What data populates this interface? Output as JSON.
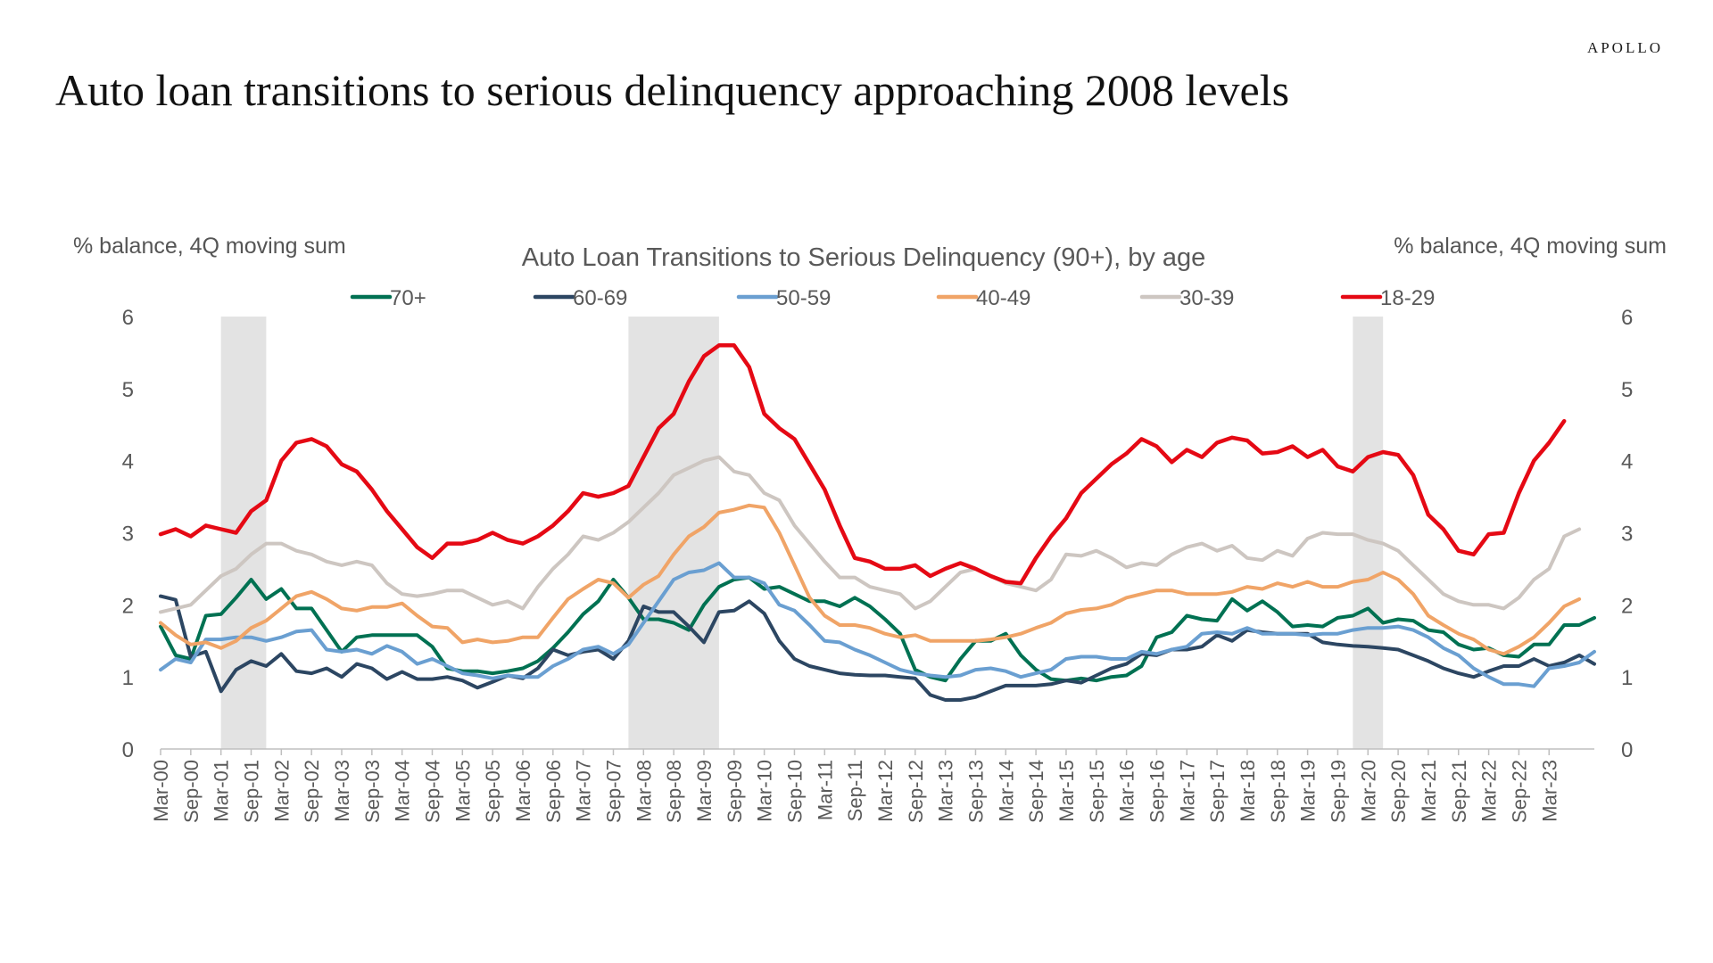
{
  "brand": "APOLLO",
  "headline": "Auto loan transitions to serious delinquency approaching 2008 levels",
  "chart_data": {
    "type": "line",
    "title": "Auto Loan Transitions to Serious Delinquency (90+), by age",
    "ylabel_left": "% balance, 4Q moving sum",
    "ylabel_right": "% balance, 4Q moving sum",
    "ylim": [
      0,
      6
    ],
    "yticks": [
      0,
      1,
      2,
      3,
      4,
      5,
      6
    ],
    "legend_position": "top",
    "grid": false,
    "x_tick_labels": [
      "Mar-00",
      "Sep-00",
      "Mar-01",
      "Sep-01",
      "Mar-02",
      "Sep-02",
      "Mar-03",
      "Sep-03",
      "Mar-04",
      "Sep-04",
      "Mar-05",
      "Sep-05",
      "Mar-06",
      "Sep-06",
      "Mar-07",
      "Sep-07",
      "Mar-08",
      "Sep-08",
      "Mar-09",
      "Sep-09",
      "Mar-10",
      "Sep-10",
      "Mar-11",
      "Sep-11",
      "Mar-12",
      "Sep-12",
      "Mar-13",
      "Sep-13",
      "Mar-14",
      "Sep-14",
      "Mar-15",
      "Sep-15",
      "Mar-16",
      "Sep-16",
      "Mar-17",
      "Sep-17",
      "Mar-18",
      "Sep-18",
      "Mar-19",
      "Sep-19",
      "Mar-20",
      "Sep-20",
      "Mar-21",
      "Sep-21",
      "Mar-22",
      "Sep-22",
      "Mar-23"
    ],
    "recessions": [
      {
        "start": "Mar-01",
        "end": "Dec-01"
      },
      {
        "start": "Dec-07",
        "end": "Jun-09"
      },
      {
        "start": "Dec-19",
        "end": "Jun-20"
      }
    ],
    "series": [
      {
        "name": "70+",
        "color": "#007152",
        "values": [
          1.7,
          1.3,
          1.25,
          1.85,
          1.87,
          2.1,
          2.35,
          2.08,
          2.22,
          1.95,
          1.95,
          1.65,
          1.35,
          1.55,
          1.58,
          1.58,
          1.58,
          1.58,
          1.42,
          1.12,
          1.08,
          1.08,
          1.05,
          1.08,
          1.12,
          1.22,
          1.4,
          1.62,
          1.87,
          2.05,
          2.35,
          2.1,
          1.8,
          1.8,
          1.75,
          1.65,
          2.0,
          2.25,
          2.35,
          2.38,
          2.22,
          2.25,
          2.15,
          2.05,
          2.05,
          1.98,
          2.1,
          1.98,
          1.8,
          1.6,
          1.1,
          1.0,
          0.95,
          1.25,
          1.5,
          1.5,
          1.6,
          1.3,
          1.1,
          0.97,
          0.95,
          0.98,
          0.95,
          1.0,
          1.02,
          1.15,
          1.55,
          1.62,
          1.85,
          1.8,
          1.78,
          2.08,
          1.92,
          2.05,
          1.9,
          1.7,
          1.72,
          1.7,
          1.82,
          1.85,
          1.95,
          1.75,
          1.8,
          1.78,
          1.65,
          1.62,
          1.45,
          1.38,
          1.4,
          1.3,
          1.28,
          1.45,
          1.45,
          1.72,
          1.72,
          1.82
        ]
      },
      {
        "name": "60-69",
        "color": "#2C4662",
        "values": [
          2.12,
          2.07,
          1.28,
          1.35,
          0.8,
          1.1,
          1.22,
          1.15,
          1.32,
          1.08,
          1.05,
          1.12,
          1.0,
          1.18,
          1.12,
          0.97,
          1.07,
          0.97,
          0.97,
          1.0,
          0.95,
          0.85,
          0.93,
          1.02,
          0.98,
          1.12,
          1.38,
          1.3,
          1.35,
          1.38,
          1.25,
          1.5,
          1.98,
          1.9,
          1.9,
          1.7,
          1.48,
          1.9,
          1.92,
          2.05,
          1.88,
          1.5,
          1.25,
          1.15,
          1.1,
          1.05,
          1.03,
          1.02,
          1.02,
          1.0,
          0.98,
          0.75,
          0.68,
          0.68,
          0.72,
          0.8,
          0.88,
          0.88,
          0.88,
          0.9,
          0.95,
          0.92,
          1.02,
          1.12,
          1.18,
          1.32,
          1.3,
          1.38,
          1.38,
          1.42,
          1.58,
          1.5,
          1.65,
          1.62,
          1.6,
          1.6,
          1.6,
          1.48,
          1.45,
          1.43,
          1.42,
          1.4,
          1.38,
          1.3,
          1.22,
          1.12,
          1.05,
          1.0,
          1.08,
          1.15,
          1.15,
          1.25,
          1.15,
          1.2,
          1.3,
          1.18
        ]
      },
      {
        "name": "50-59",
        "color": "#6A9FD1",
        "values": [
          1.1,
          1.25,
          1.2,
          1.52,
          1.52,
          1.55,
          1.55,
          1.5,
          1.55,
          1.63,
          1.65,
          1.38,
          1.35,
          1.38,
          1.32,
          1.43,
          1.35,
          1.18,
          1.25,
          1.15,
          1.05,
          1.02,
          0.98,
          1.02,
          1.0,
          1.0,
          1.15,
          1.25,
          1.38,
          1.42,
          1.32,
          1.45,
          1.75,
          2.05,
          2.35,
          2.45,
          2.48,
          2.58,
          2.38,
          2.38,
          2.3,
          2.0,
          1.92,
          1.72,
          1.5,
          1.48,
          1.38,
          1.3,
          1.2,
          1.1,
          1.05,
          1.02,
          1.0,
          1.02,
          1.1,
          1.12,
          1.08,
          1.0,
          1.05,
          1.1,
          1.25,
          1.28,
          1.28,
          1.25,
          1.25,
          1.35,
          1.32,
          1.38,
          1.42,
          1.6,
          1.62,
          1.6,
          1.68,
          1.6,
          1.6,
          1.6,
          1.58,
          1.6,
          1.6,
          1.65,
          1.68,
          1.68,
          1.7,
          1.65,
          1.55,
          1.4,
          1.3,
          1.12,
          1.0,
          0.9,
          0.9,
          0.87,
          1.12,
          1.15,
          1.2,
          1.35
        ]
      },
      {
        "name": "40-49",
        "color": "#F0A467",
        "values": [
          1.75,
          1.58,
          1.45,
          1.48,
          1.4,
          1.5,
          1.68,
          1.78,
          1.95,
          2.12,
          2.18,
          2.08,
          1.95,
          1.92,
          1.97,
          1.97,
          2.02,
          1.85,
          1.7,
          1.68,
          1.48,
          1.52,
          1.48,
          1.5,
          1.55,
          1.55,
          1.82,
          2.08,
          2.22,
          2.35,
          2.3,
          2.1,
          2.28,
          2.4,
          2.7,
          2.95,
          3.08,
          3.28,
          3.32,
          3.38,
          3.35,
          3.0,
          2.55,
          2.1,
          1.85,
          1.72,
          1.72,
          1.68,
          1.6,
          1.55,
          1.58,
          1.5,
          1.5,
          1.5,
          1.5,
          1.52,
          1.55,
          1.6,
          1.68,
          1.75,
          1.88,
          1.93,
          1.95,
          2.0,
          2.1,
          2.15,
          2.2,
          2.2,
          2.15,
          2.15,
          2.15,
          2.18,
          2.25,
          2.22,
          2.3,
          2.25,
          2.32,
          2.25,
          2.25,
          2.32,
          2.35,
          2.45,
          2.35,
          2.15,
          1.85,
          1.72,
          1.6,
          1.52,
          1.38,
          1.32,
          1.42,
          1.55,
          1.75,
          1.98,
          2.08
        ]
      },
      {
        "name": "30-39",
        "color": "#CDC6C1",
        "values": [
          1.9,
          1.95,
          2.0,
          2.2,
          2.4,
          2.5,
          2.7,
          2.85,
          2.85,
          2.75,
          2.7,
          2.6,
          2.55,
          2.6,
          2.55,
          2.3,
          2.15,
          2.12,
          2.15,
          2.2,
          2.2,
          2.1,
          2.0,
          2.05,
          1.95,
          2.25,
          2.5,
          2.7,
          2.95,
          2.9,
          3.0,
          3.15,
          3.35,
          3.55,
          3.8,
          3.9,
          4.0,
          4.05,
          3.85,
          3.8,
          3.55,
          3.45,
          3.1,
          2.85,
          2.6,
          2.38,
          2.38,
          2.25,
          2.2,
          2.15,
          1.95,
          2.05,
          2.25,
          2.45,
          2.5,
          2.4,
          2.3,
          2.25,
          2.2,
          2.35,
          2.7,
          2.68,
          2.75,
          2.65,
          2.52,
          2.58,
          2.55,
          2.7,
          2.8,
          2.85,
          2.75,
          2.82,
          2.65,
          2.62,
          2.75,
          2.68,
          2.92,
          3.0,
          2.98,
          2.98,
          2.9,
          2.85,
          2.75,
          2.55,
          2.35,
          2.15,
          2.05,
          2.0,
          2.0,
          1.95,
          2.1,
          2.35,
          2.5,
          2.95,
          3.05
        ]
      },
      {
        "name": "18-29",
        "color": "#E50914",
        "values": [
          2.98,
          3.05,
          2.95,
          3.1,
          3.05,
          3.0,
          3.3,
          3.45,
          4.0,
          4.25,
          4.3,
          4.2,
          3.95,
          3.85,
          3.6,
          3.3,
          3.05,
          2.8,
          2.65,
          2.85,
          2.85,
          2.9,
          3.0,
          2.9,
          2.85,
          2.95,
          3.1,
          3.3,
          3.55,
          3.5,
          3.55,
          3.65,
          4.05,
          4.45,
          4.65,
          5.1,
          5.45,
          5.6,
          5.6,
          5.3,
          4.65,
          4.45,
          4.3,
          3.95,
          3.6,
          3.1,
          2.65,
          2.6,
          2.5,
          2.5,
          2.55,
          2.4,
          2.5,
          2.58,
          2.5,
          2.4,
          2.32,
          2.3,
          2.65,
          2.95,
          3.2,
          3.55,
          3.75,
          3.95,
          4.1,
          4.3,
          4.2,
          3.98,
          4.15,
          4.05,
          4.25,
          4.32,
          4.28,
          4.1,
          4.12,
          4.2,
          4.05,
          4.15,
          3.92,
          3.85,
          4.05,
          4.12,
          4.08,
          3.8,
          3.25,
          3.05,
          2.75,
          2.7,
          2.98,
          3.0,
          3.55,
          4.0,
          4.25,
          4.55
        ]
      }
    ]
  }
}
